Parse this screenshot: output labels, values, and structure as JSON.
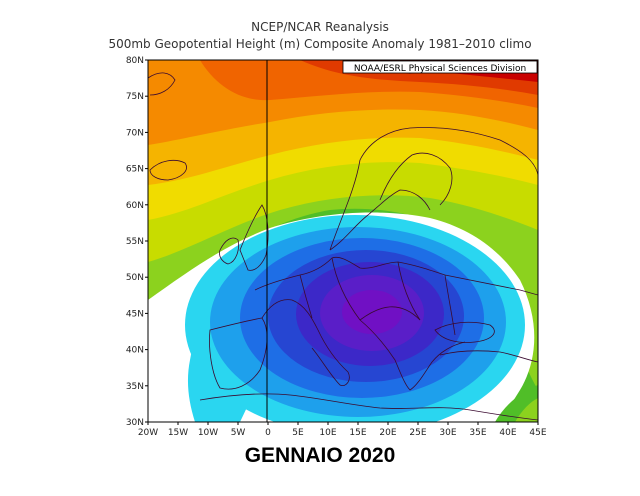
{
  "header": {
    "title": "NCEP/NCAR Reanalysis",
    "subtitle": "500mb Geopotential Height (m) Composite Anomaly 1981–2010 climo"
  },
  "credit": "NOAA/ESRL Physical Sciences Division",
  "caption": "GENNAIO 2020",
  "axes": {
    "lat_ticks": [
      "30N",
      "35N",
      "40N",
      "45N",
      "50N",
      "55N",
      "60N",
      "65N",
      "70N",
      "75N",
      "80N"
    ],
    "lon_ticks": [
      "20W",
      "15W",
      "10W",
      "5W",
      "0",
      "5E",
      "10E",
      "15E",
      "20E",
      "25E",
      "30E",
      "35E",
      "40E",
      "45E"
    ],
    "lat_range": [
      30,
      80
    ],
    "lon_range": [
      -20,
      45
    ]
  },
  "colors": {
    "positive": [
      "#c80000",
      "#e03a00",
      "#f06400",
      "#f58a00",
      "#f5b400",
      "#f0dc00",
      "#c8dc00",
      "#8cd21e",
      "#50be28"
    ],
    "negative": [
      "#2ad6f0",
      "#1ea0ec",
      "#1e6ee6",
      "#2646d2",
      "#3c28c8",
      "#5a1ec8",
      "#7010c4"
    ]
  }
}
